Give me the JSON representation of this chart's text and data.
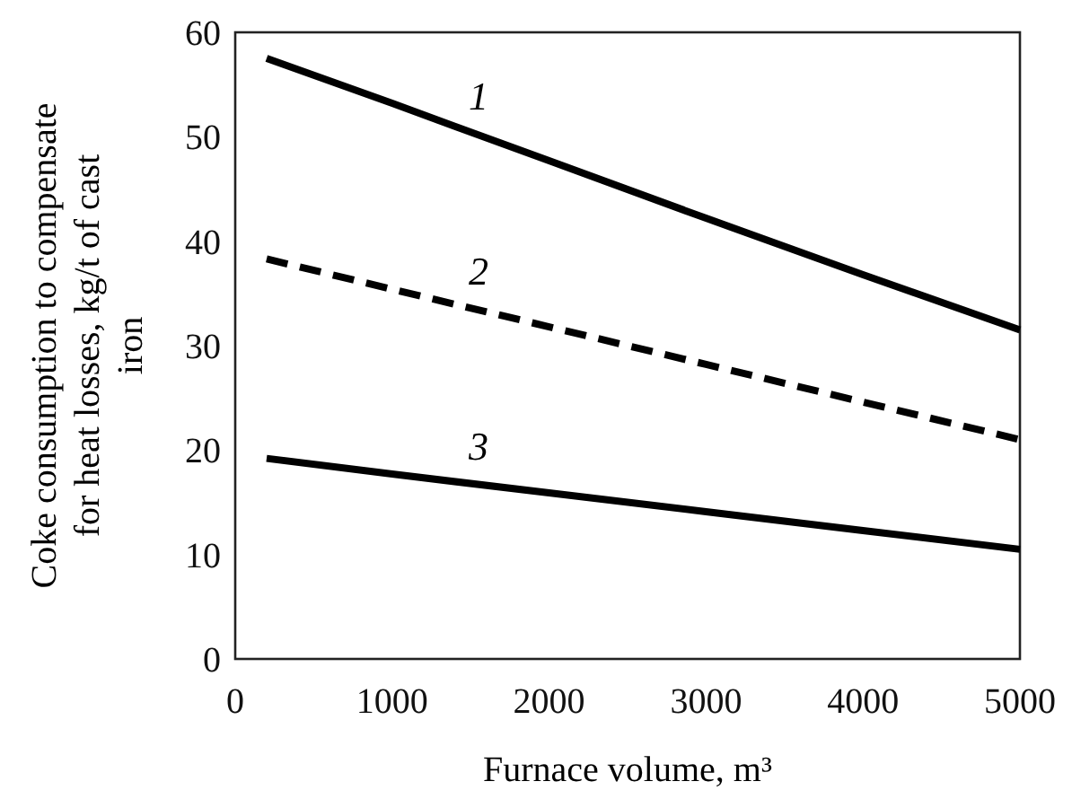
{
  "chart_data": {
    "type": "line",
    "xlabel": "Furnace volume, m³",
    "ylabel": "Coke consumption to compensate for heat losses, kg/t of cast iron",
    "x": [
      200,
      1000,
      2000,
      3000,
      4000,
      5000
    ],
    "series": [
      {
        "name": "1",
        "color": "#000000",
        "line_style": "solid",
        "values": [
          57.5,
          53.2,
          47.7,
          42.2,
          36.8,
          31.5
        ]
      },
      {
        "name": "2",
        "color": "#000000",
        "line_style": "dashed",
        "values": [
          38.3,
          35.4,
          31.8,
          28.2,
          24.6,
          21
        ]
      },
      {
        "name": "3",
        "color": "#000000",
        "line_style": "solid",
        "values": [
          19.2,
          17.7,
          15.9,
          14.1,
          12.3,
          10.5
        ]
      }
    ],
    "xlim": [
      0,
      5000
    ],
    "ylim": [
      0,
      60
    ],
    "xticks": [
      0,
      1000,
      2000,
      3000,
      4000,
      5000
    ],
    "yticks": [
      0,
      10,
      20,
      30,
      40,
      50,
      60
    ],
    "grid": false,
    "marker": "none"
  }
}
